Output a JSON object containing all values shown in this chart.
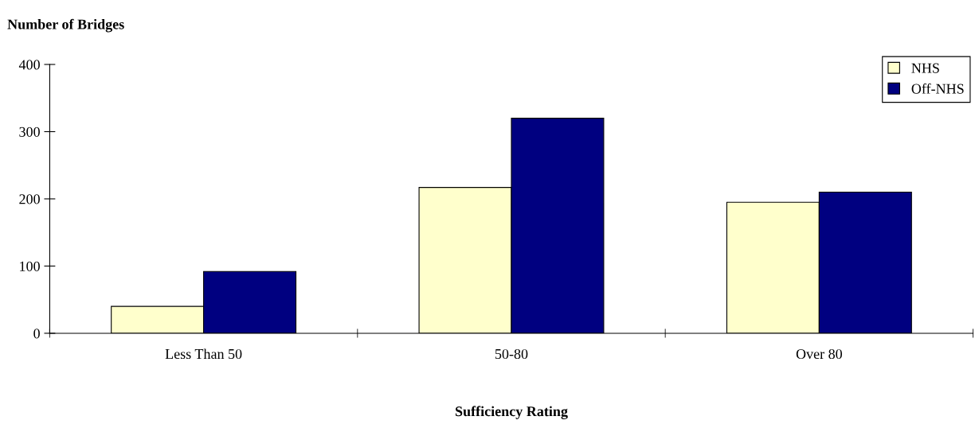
{
  "chart_data": {
    "type": "bar",
    "ylabel": "Number of Bridges",
    "xlabel": "Sufficiency Rating",
    "categories": [
      "Less Than 50",
      "50-80",
      "Over 80"
    ],
    "series": [
      {
        "name": "NHS",
        "color": "#ffffcc",
        "values": [
          40,
          217,
          195
        ]
      },
      {
        "name": "Off-NHS",
        "color": "#000080",
        "values": [
          92,
          320,
          210
        ]
      }
    ],
    "ylim": [
      0,
      400
    ],
    "yticks": [
      0,
      100,
      200,
      300,
      400
    ],
    "grid": false,
    "legend": "top right"
  }
}
